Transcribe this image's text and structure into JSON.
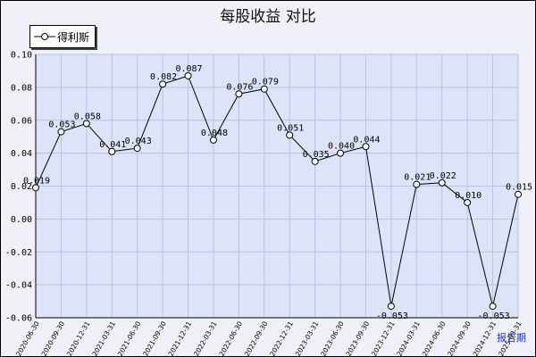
{
  "title": "每股收益  对比",
  "chart_data": {
    "type": "line",
    "title": "每股收益  对比",
    "categories": [
      "2020-06-30",
      "2020-09-30",
      "2020-12-31",
      "2021-03-31",
      "2021-06-30",
      "2021-09-30",
      "2021-12-31",
      "2022-03-31",
      "2022-06-30",
      "2022-09-30",
      "2022-12-31",
      "2023-03-31",
      "2023-06-30",
      "2023-09-30",
      "2023-12-31",
      "2024-03-31",
      "2024-06-30",
      "2024-09-30",
      "2024-12-31",
      "2025-03-31"
    ],
    "series": [
      {
        "name": "得利斯",
        "values": [
          0.019,
          0.053,
          0.058,
          0.041,
          0.043,
          0.082,
          0.087,
          0.048,
          0.076,
          0.079,
          0.051,
          0.035,
          0.04,
          0.044,
          -0.053,
          0.021,
          0.022,
          0.01,
          -0.053,
          0.015
        ],
        "value_labels": [
          "0.019",
          "0.053",
          "0.058",
          "0.041",
          "0.043",
          "0.082",
          "0.087",
          "0.048",
          "0.076",
          "0.079",
          "0.051",
          "0.035",
          "0.040",
          "0.044",
          "-0.053",
          "0.021",
          "0.022",
          "0.010",
          "-0.053",
          "0.015"
        ]
      }
    ],
    "ylim": [
      -0.06,
      0.1
    ],
    "yticks": [
      "0.10",
      "0.08",
      "0.06",
      "0.04",
      "0.02",
      "0.00",
      "-0.02",
      "-0.04",
      "-0.06"
    ],
    "ytick_values": [
      0.1,
      0.08,
      0.06,
      0.04,
      0.02,
      0.0,
      -0.02,
      -0.04,
      -0.06
    ],
    "grid": true,
    "legend_position": "top-left",
    "x_axis_end_label": "报告期",
    "colors": {
      "background": "#f0f0f8",
      "plot_background": "#dde3f8",
      "grid": "#b8c2e8",
      "line": "#000000",
      "accent_label": "#1a33cc"
    }
  }
}
